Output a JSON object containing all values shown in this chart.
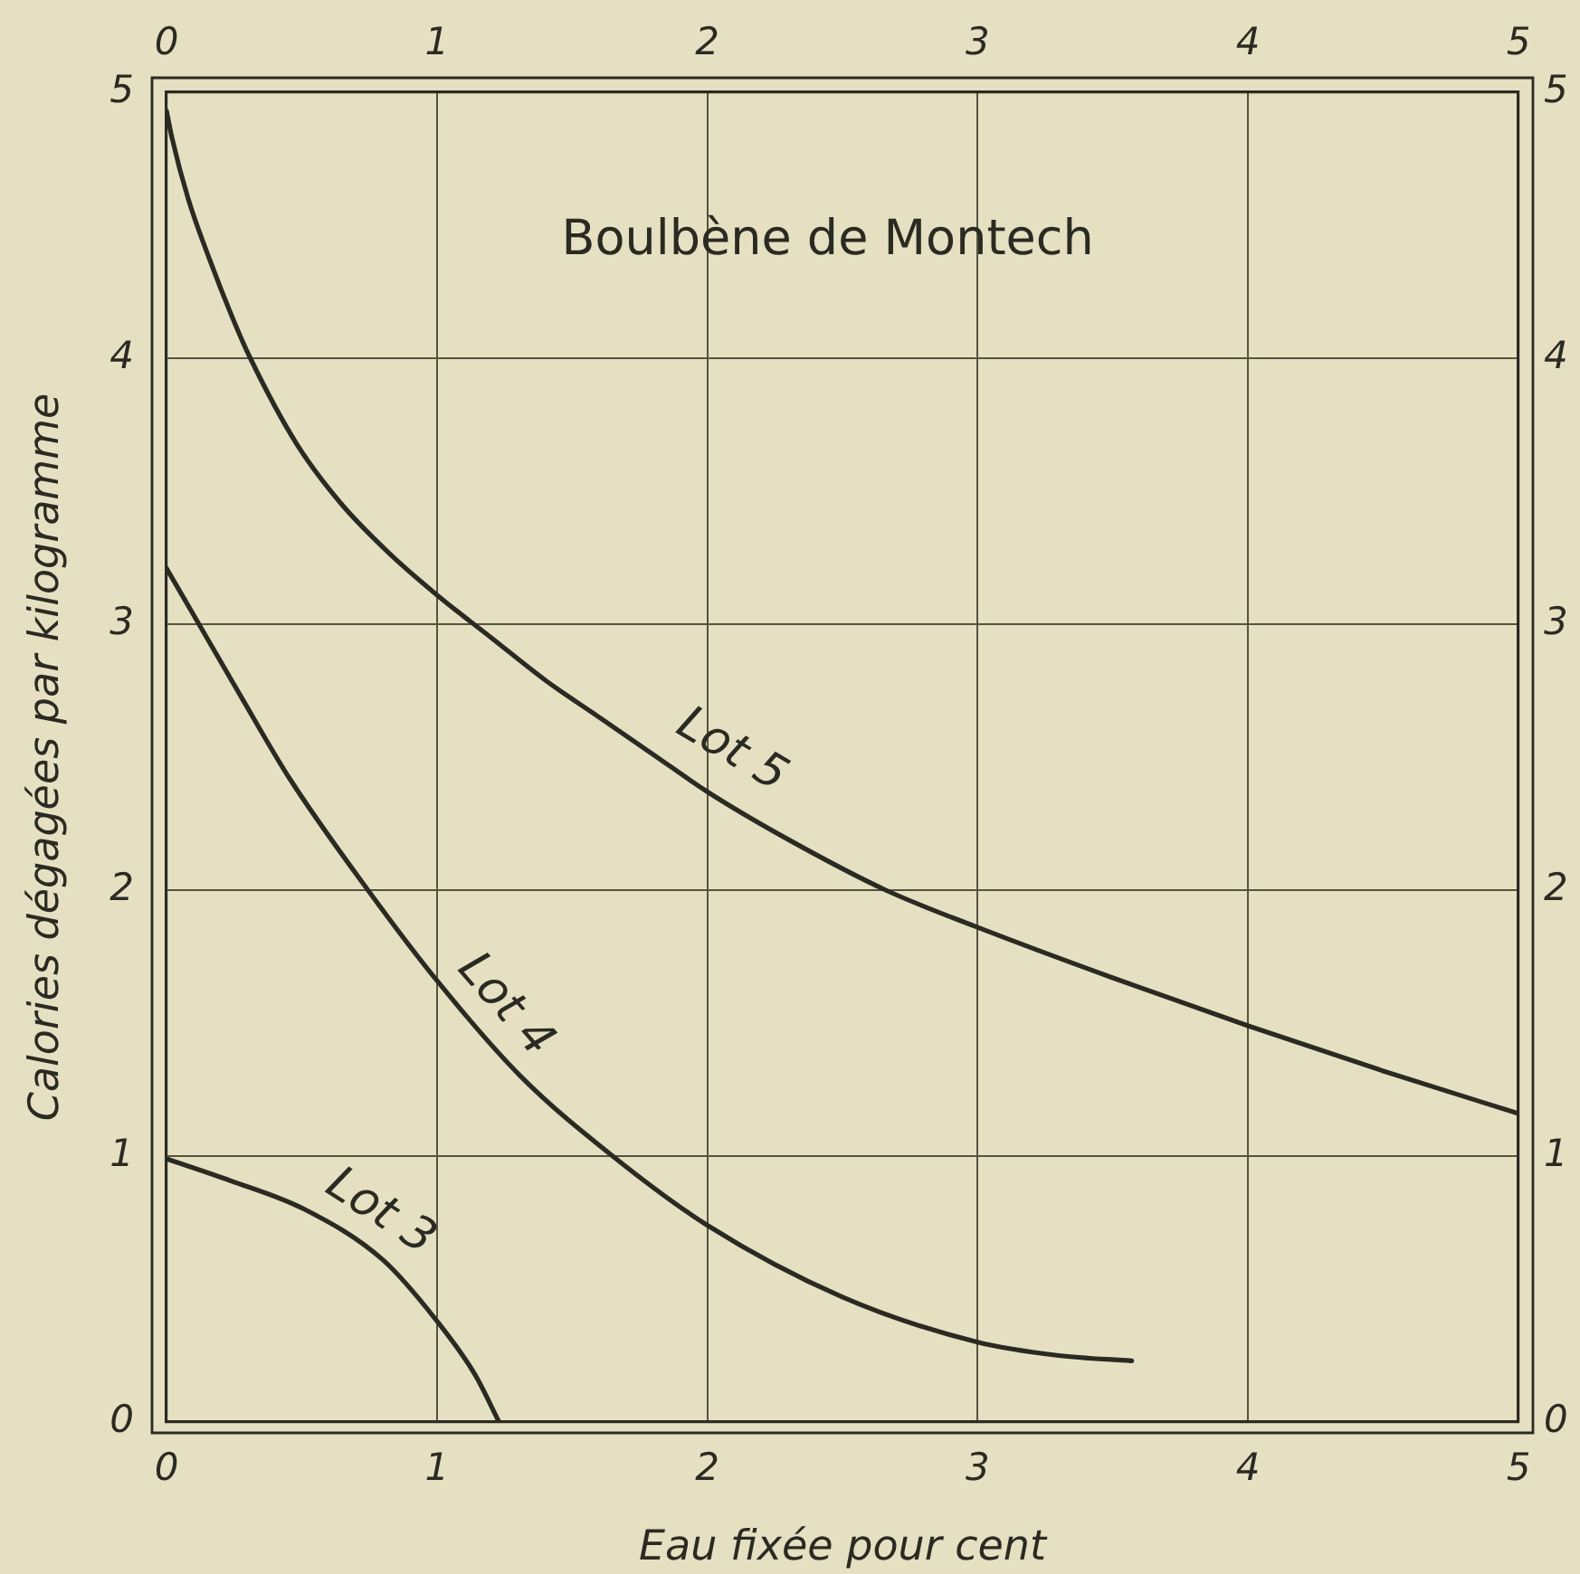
{
  "chart_data": {
    "type": "line",
    "title": "Boulbène de Montech",
    "xlabel": "Eau fixée pour cent",
    "ylabel": "Calories dégagées par kilogramme",
    "xlim": [
      0,
      5
    ],
    "xticks": [
      0,
      1,
      2,
      3,
      4,
      5
    ],
    "ylim": [
      0,
      5
    ],
    "yticks": [
      0,
      1,
      2,
      3,
      4,
      5
    ],
    "x2lim": [
      0,
      5
    ],
    "x2ticks": [
      0,
      1,
      2,
      3,
      4,
      5
    ],
    "y2lim": [
      0,
      5
    ],
    "y2ticks": [
      0,
      1,
      2,
      3,
      4,
      5
    ],
    "grid": true,
    "marker": "none",
    "line_style": "solid",
    "series": [
      {
        "name": "Lot 5",
        "color": "#2b2a22",
        "x": [
          0,
          0.02,
          0.08,
          0.16,
          0.245,
          0.31,
          0.48,
          0.64,
          0.82,
          1,
          1.2,
          1.4,
          1.6,
          1.8,
          2,
          2.3,
          2.66,
          3,
          3.5,
          4,
          4.5,
          5
        ],
        "values": [
          4.93,
          4.83,
          4.6,
          4.37,
          4.15,
          4.0,
          3.68,
          3.46,
          3.27,
          3.11,
          2.95,
          2.79,
          2.65,
          2.51,
          2.37,
          2.19,
          2.0,
          1.86,
          1.67,
          1.49,
          1.32,
          1.16
        ]
      },
      {
        "name": "Lot 4",
        "color": "#2b2a22",
        "x": [
          0,
          0.12,
          0.28,
          0.455,
          0.745,
          1,
          1.31,
          1.65,
          2,
          2.5,
          3,
          3.3,
          3.57
        ],
        "values": [
          3.21,
          3.0,
          2.72,
          2.42,
          2.0,
          1.66,
          1.3,
          1.0,
          0.74,
          0.47,
          0.3,
          0.25,
          0.23
        ]
      },
      {
        "name": "Lot 3",
        "color": "#2b2a22",
        "x": [
          0,
          0.23,
          0.51,
          0.8,
          1,
          1.14,
          1.23
        ],
        "values": [
          0.99,
          0.91,
          0.8,
          0.61,
          0.38,
          0.18,
          0
        ]
      }
    ]
  }
}
